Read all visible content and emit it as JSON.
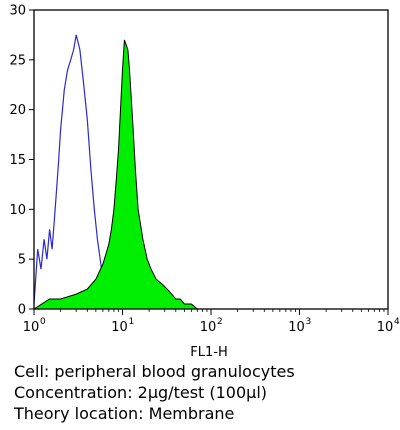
{
  "chart_data": {
    "type": "area",
    "xlabel": "FL1-H",
    "ylabel": "",
    "x_scale": "log",
    "xlim": [
      1,
      10000
    ],
    "ylim": [
      0,
      30
    ],
    "x_ticks": [
      {
        "base": "10",
        "exp": "0"
      },
      {
        "base": "10",
        "exp": "1"
      },
      {
        "base": "10",
        "exp": "2"
      },
      {
        "base": "10",
        "exp": "3"
      },
      {
        "base": "10",
        "exp": "4"
      }
    ],
    "y_ticks": [
      0,
      5,
      10,
      15,
      20,
      25,
      30
    ],
    "grid": false,
    "series": [
      {
        "style": "outline",
        "color": "#2a2ad0",
        "x": [
          1.0,
          1.1,
          1.2,
          1.3,
          1.4,
          1.5,
          1.6,
          1.7,
          1.8,
          1.9,
          2.0,
          2.2,
          2.4,
          2.6,
          2.8,
          3.0,
          3.3,
          3.6,
          4.0,
          4.4,
          4.8,
          5.2,
          5.6,
          6.0,
          6.5,
          7.0,
          7.5,
          8.0,
          9.0
        ],
        "y": [
          0.5,
          6,
          4,
          7,
          5,
          8,
          6,
          9,
          12,
          15,
          18,
          22,
          24,
          25,
          26,
          27.5,
          26,
          23,
          19,
          14,
          10,
          7,
          5,
          3,
          2,
          4,
          3,
          2,
          1
        ]
      },
      {
        "style": "filled",
        "color": "#00ee00",
        "x": [
          1.0,
          1.5,
          2.0,
          3.0,
          4.0,
          5.0,
          6.0,
          7.0,
          7.5,
          8.0,
          8.5,
          9.0,
          9.5,
          10.0,
          10.5,
          11.0,
          11.5,
          12.0,
          13.0,
          14.0,
          15.0,
          17.0,
          19.0,
          21.0,
          24.0,
          28.0,
          32.0,
          36.0,
          40.0,
          45.0,
          50.0,
          55.0,
          60.0,
          70.0
        ],
        "y": [
          0,
          1,
          1,
          1.5,
          2,
          3,
          4.5,
          6.5,
          8,
          10,
          13,
          16,
          20,
          24,
          27,
          26.5,
          26,
          24,
          19,
          14,
          10,
          7,
          5,
          4,
          3,
          2.5,
          2,
          1.5,
          1,
          1,
          0.5,
          0.5,
          0.5,
          0
        ]
      }
    ]
  },
  "caption": {
    "cell": "Cell: peripheral blood granulocytes",
    "concentration": "Concentration: 2μg/test (100μl)",
    "location": "Theory location: Membrane"
  }
}
